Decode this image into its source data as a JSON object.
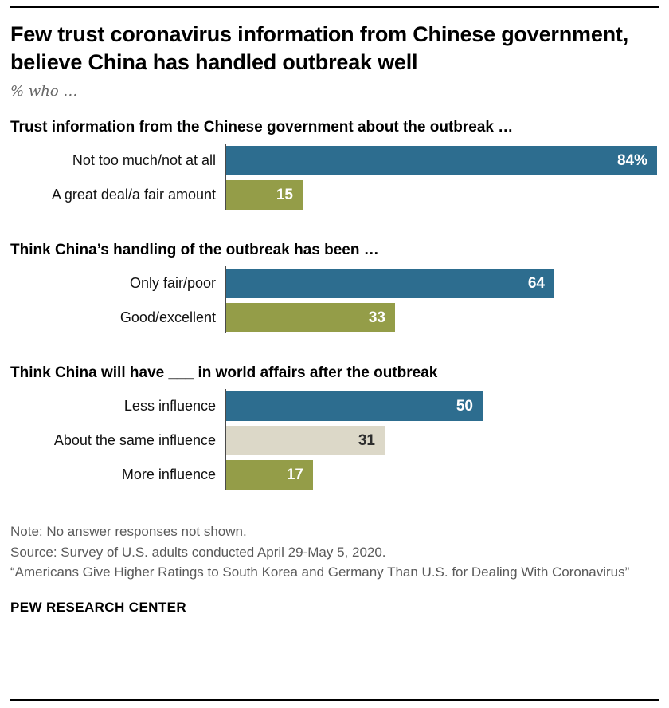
{
  "header": {
    "title": "Few trust coronavirus information from Chinese government, believe China has handled outbreak well",
    "subtitle": "% who …"
  },
  "colors": {
    "blue": "#2d6d8f",
    "olive": "#949d48",
    "tan": "#dcd8c8"
  },
  "chart_data": [
    {
      "type": "bar",
      "title": "Trust information from the Chinese government about the outbreak …",
      "categories": [
        "Not too much/not at all",
        "A great deal/a fair amount"
      ],
      "values": [
        84,
        15
      ],
      "value_labels": [
        "84%",
        "15"
      ],
      "colors": [
        "blue",
        "olive"
      ],
      "xlim": [
        0,
        100
      ],
      "orientation": "horizontal",
      "grid": false,
      "legend": false
    },
    {
      "type": "bar",
      "title": "Think China’s handling of the outbreak has been …",
      "categories": [
        "Only fair/poor",
        "Good/excellent"
      ],
      "values": [
        64,
        33
      ],
      "value_labels": [
        "64",
        "33"
      ],
      "colors": [
        "blue",
        "olive"
      ],
      "xlim": [
        0,
        100
      ],
      "orientation": "horizontal",
      "grid": false,
      "legend": false
    },
    {
      "type": "bar",
      "title": "Think China will have ___ in world affairs after the outbreak",
      "categories": [
        "Less influence",
        "About the same influence",
        "More influence"
      ],
      "values": [
        50,
        31,
        17
      ],
      "value_labels": [
        "50",
        "31",
        "17"
      ],
      "colors": [
        "blue",
        "tan",
        "olive"
      ],
      "xlim": [
        0,
        100
      ],
      "orientation": "horizontal",
      "grid": false,
      "legend": false
    }
  ],
  "footer": {
    "note": "Note: No answer responses not shown.",
    "source": "Source: Survey of U.S. adults conducted April 29-May 5, 2020.",
    "report": "“Americans Give Higher Ratings to South Korea and Germany Than U.S. for Dealing With Coronavirus”",
    "brand": "PEW RESEARCH CENTER"
  }
}
